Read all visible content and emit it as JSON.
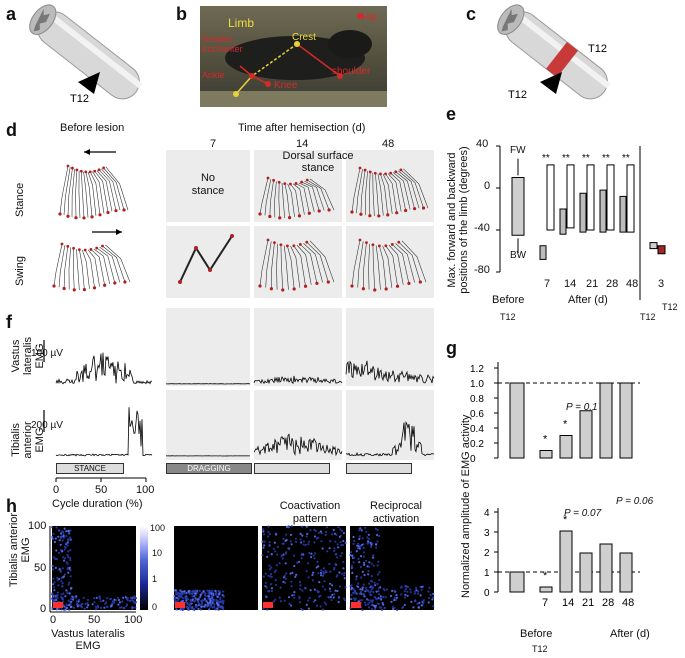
{
  "panels": {
    "a": "a",
    "b": "b",
    "c": "c",
    "d": "d",
    "e": "e",
    "f": "f",
    "g": "g",
    "h": "h"
  },
  "a": {
    "t12": "T12"
  },
  "b": {
    "limb": "Limb",
    "crest": "Crest",
    "ankle": "Ankle",
    "knee": "Knee",
    "shoulder": "shoulder",
    "hip": "Hip",
    "greater_trochanter": "Greater trochanter"
  },
  "c": {
    "t12_upper": "T12",
    "t12_lower": "T12"
  },
  "d": {
    "before_lesion": "Before lesion",
    "time_after": "Time after hemisection (d)",
    "days": [
      "7",
      "14",
      "48"
    ],
    "stance": "Stance",
    "swing": "Swing",
    "no_stance": "No stance",
    "dorsal_surface": "Dorsal surface stance"
  },
  "e": {
    "ylabel": "Max. forward and backward positions of the limb (degrees)",
    "yticks": [
      "40",
      "0",
      "-40",
      "-80"
    ],
    "fw": "FW",
    "bw": "BW",
    "xticks": [
      "7",
      "14",
      "21",
      "28",
      "48"
    ],
    "before": "Before",
    "after": "After (d)",
    "right_tick": "3",
    "t12_left": "T12",
    "t12_right_a": "T12",
    "t12_right_b": "T12",
    "sig": "**",
    "sig1": "*"
  },
  "f": {
    "vastus": "Vastus lateralis EMG",
    "tibialis": "Tibialis anterior EMG",
    "scale_v": "100 µV",
    "scale_t": "200 µV",
    "stance": "STANCE",
    "dragging": "DRAGGING",
    "cycle": "Cycle duration (%)",
    "xticks": [
      "0",
      "50",
      "100"
    ]
  },
  "g": {
    "ylabel": "Normalized amplitude of EMG activity",
    "top_yticks": [
      "1.2",
      "1.0",
      "0.8",
      "0.6",
      "0.4",
      "0.2",
      "0"
    ],
    "bot_yticks": [
      "4",
      "3",
      "2",
      "1",
      "0"
    ],
    "p01": "P = 0.1",
    "p007": "P = 0.07",
    "p006": "P = 0.06",
    "xticks": [
      "7",
      "14",
      "21",
      "28",
      "48"
    ],
    "before": "Before",
    "after": "After (d)",
    "t12": "T12",
    "star": "*"
  },
  "h": {
    "ylabel": "Tibialis anterior EMG",
    "xlabel": "Vastus lateralis EMG",
    "yticks": [
      "100",
      "50",
      "0"
    ],
    "xticks": [
      "0",
      "50",
      "100"
    ],
    "cbar": [
      "100",
      "10",
      "1",
      "0"
    ],
    "coactivation": "Coactivation pattern",
    "reciprocal": "Reciprocal activation"
  },
  "chart_data": [
    {
      "type": "bar",
      "title": "",
      "ylabel": "Normalized amplitude of EMG activity",
      "categories": [
        "Before",
        "7",
        "14",
        "21",
        "28",
        "48"
      ],
      "values": [
        1.0,
        0.1,
        0.3,
        0.63,
        1.0,
        1.0
      ],
      "ylim": [
        0,
        1.2
      ],
      "annotations": [
        "*",
        "*",
        "P = 0.1"
      ]
    },
    {
      "type": "bar",
      "title": "",
      "ylabel": "Normalized amplitude of EMG activity",
      "categories": [
        "Before",
        "7",
        "14",
        "21",
        "28",
        "48"
      ],
      "values": [
        1.0,
        0.25,
        3.05,
        1.95,
        2.4,
        1.95
      ],
      "ylim": [
        0,
        4
      ],
      "annotations": [
        "*",
        "*",
        "P = 0.07",
        "P = 0.06"
      ]
    },
    {
      "type": "bar",
      "title": "",
      "ylabel": "Max. forward and backward positions of the limb (degrees)",
      "categories": [
        "Before",
        "7",
        "14",
        "21",
        "28",
        "48"
      ],
      "series": [
        {
          "values_fw": [
            10,
            -55,
            -20,
            -5,
            -3,
            -10
          ]
        },
        {
          "values_bw": [
            -45,
            -65,
            -40,
            -42,
            -42,
            -42
          ]
        }
      ],
      "ylim": [
        -80,
        40
      ]
    }
  ]
}
